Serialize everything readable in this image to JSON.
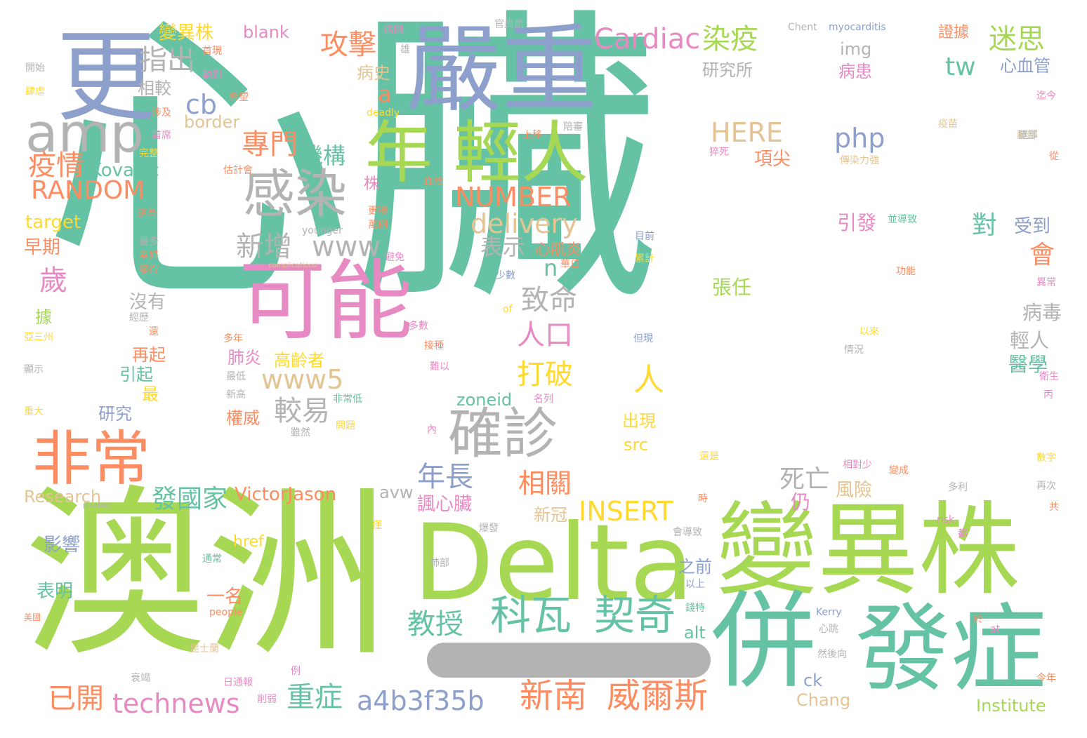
{
  "words": [
    {
      "text": "心臟",
      "color": "#66c2a5"
    },
    {
      "text": "澳洲",
      "color": "#a6d854"
    },
    {
      "text": "Delta",
      "color": "#a6d854"
    },
    {
      "text": "變異株",
      "color": "#a6d854"
    },
    {
      "text": "嚴重",
      "color": "#8da0cb"
    },
    {
      "text": "更",
      "color": "#8da0cb"
    },
    {
      "text": "可能",
      "color": "#e78ac3"
    },
    {
      "text": "年",
      "color": "#a6d854"
    },
    {
      "text": "輕人",
      "color": "#a6d854"
    },
    {
      "text": "併",
      "color": "#66c2a5"
    },
    {
      "text": "發症",
      "color": "#66c2a5"
    },
    {
      "text": "amp",
      "color": "#b3b3b3"
    },
    {
      "text": "感染",
      "color": "#b3b3b3"
    },
    {
      "text": "非常",
      "color": "#fc8d62"
    },
    {
      "text": "確診",
      "color": "#b3b3b3"
    },
    {
      "text": "科瓦",
      "color": "#66c2a5"
    },
    {
      "text": "契奇",
      "color": "#66c2a5"
    },
    {
      "text": "新南",
      "color": "#fc8d62"
    },
    {
      "text": "威爾斯",
      "color": "#fc8d62"
    },
    {
      "text": "Cardiac",
      "color": "#e78ac3"
    },
    {
      "text": "染疫",
      "color": "#a6d854"
    },
    {
      "text": "迷思",
      "color": "#a6d854"
    },
    {
      "text": "攻擊",
      "color": "#fc8d62"
    },
    {
      "text": "指出",
      "color": "#b3b3b3"
    },
    {
      "text": "RANDOM",
      "color": "#fc8d62"
    },
    {
      "text": "NUMBER",
      "color": "#fc8d62"
    },
    {
      "text": "delivery",
      "color": "#e5c494"
    },
    {
      "text": "php",
      "color": "#8da0cb"
    },
    {
      "text": "HERE",
      "color": "#e5c494"
    },
    {
      "text": "INSERT",
      "color": "#ffd92f"
    },
    {
      "text": "technews",
      "color": "#e78ac3"
    },
    {
      "text": "a4b3f35b",
      "color": "#8da0cb"
    },
    {
      "text": "重症",
      "color": "#66c2a5"
    },
    {
      "text": "已開",
      "color": "#fc8d62"
    },
    {
      "text": "教授",
      "color": "#66c2a5"
    },
    {
      "text": "VictorJason",
      "color": "#fc8d62"
    },
    {
      "text": "發國家",
      "color": "#66c2a5"
    },
    {
      "text": "年長",
      "color": "#8da0cb"
    },
    {
      "text": "相關",
      "color": "#fc8d62"
    },
    {
      "text": "疫情",
      "color": "#fc8d62"
    },
    {
      "text": "Kovacic",
      "color": "#66c2a5"
    },
    {
      "text": "專門",
      "color": "#fc8d62"
    },
    {
      "text": "機構",
      "color": "#66c2a5"
    },
    {
      "text": "新增",
      "color": "#b3b3b3"
    },
    {
      "text": "www",
      "color": "#b3b3b3"
    },
    {
      "text": "www5",
      "color": "#e5c494"
    },
    {
      "text": "較易",
      "color": "#b3b3b3"
    },
    {
      "text": "打破",
      "color": "#ffd92f"
    },
    {
      "text": "致命",
      "color": "#b3b3b3"
    },
    {
      "text": "人口",
      "color": "#e78ac3"
    },
    {
      "text": "表示",
      "color": "#b3b3b3"
    },
    {
      "text": "心肌炎",
      "color": "#fc8d62"
    },
    {
      "text": "死亡",
      "color": "#b3b3b3"
    },
    {
      "text": "tw",
      "color": "#66c2a5"
    },
    {
      "text": "cb",
      "color": "#8da0cb"
    },
    {
      "text": "a",
      "color": "#fc8d62"
    },
    {
      "text": "n",
      "color": "#66c2a5"
    },
    {
      "text": "對",
      "color": "#66c2a5"
    },
    {
      "text": "會",
      "color": "#fc8d62"
    },
    {
      "text": "人",
      "color": "#ffd92f"
    },
    {
      "text": "歲",
      "color": "#e78ac3"
    },
    {
      "text": "受到",
      "color": "#8da0cb"
    },
    {
      "text": "引發",
      "color": "#e78ac3"
    },
    {
      "text": "病毒",
      "color": "#b3b3b3"
    },
    {
      "text": "輕人",
      "color": "#b3b3b3"
    },
    {
      "text": "醫學",
      "color": "#66c2a5"
    },
    {
      "text": "張任",
      "color": "#a6d854"
    },
    {
      "text": "風險",
      "color": "#e5c494"
    },
    {
      "text": "諷心臟",
      "color": "#e78ac3"
    },
    {
      "text": "新冠",
      "color": "#e5c494"
    },
    {
      "text": "仍",
      "color": "#e78ac3"
    },
    {
      "text": "研究所",
      "color": "#b3b3b3"
    },
    {
      "text": "img",
      "color": "#b3b3b3"
    },
    {
      "text": "病患",
      "color": "#e78ac3"
    },
    {
      "text": "心血管",
      "color": "#8da0cb"
    },
    {
      "text": "項尖",
      "color": "#fc8d62"
    },
    {
      "text": "病史",
      "color": "#e5c494"
    },
    {
      "text": "變異株",
      "color": "#ffd92f"
    },
    {
      "text": "blank",
      "color": "#e78ac3"
    },
    {
      "text": "border",
      "color": "#e5c494"
    },
    {
      "text": "target",
      "color": "#ffd92f"
    },
    {
      "text": "早期",
      "color": "#fc8d62"
    },
    {
      "text": "相較",
      "color": "#b3b3b3"
    },
    {
      "text": "沒有",
      "color": "#b3b3b3"
    },
    {
      "text": "肺炎",
      "color": "#e78ac3"
    },
    {
      "text": "高齡者",
      "color": "#ffd92f"
    },
    {
      "text": "權威",
      "color": "#fc8d62"
    },
    {
      "text": "出現",
      "color": "#ffd92f"
    },
    {
      "text": "src",
      "color": "#ffd92f"
    },
    {
      "text": "zoneid",
      "color": "#66c2a5"
    },
    {
      "text": "avw",
      "color": "#b3b3b3"
    },
    {
      "text": "Research",
      "color": "#e5c494"
    },
    {
      "text": "之前",
      "color": "#8da0cb"
    },
    {
      "text": "一名",
      "color": "#fc8d62"
    },
    {
      "text": "alt",
      "color": "#66c2a5"
    },
    {
      "text": "ck",
      "color": "#8da0cb"
    },
    {
      "text": "Chang",
      "color": "#e5c494"
    },
    {
      "text": "Institute",
      "color": "#a6d854"
    },
    {
      "text": "href",
      "color": "#ffd92f"
    },
    {
      "text": "影響",
      "color": "#8da0cb"
    },
    {
      "text": "表明",
      "color": "#66c2a5"
    },
    {
      "text": "研究",
      "color": "#8da0cb"
    },
    {
      "text": "引起",
      "color": "#66c2a5"
    },
    {
      "text": "再起",
      "color": "#fc8d62"
    },
    {
      "text": "據",
      "color": "#a6d854"
    },
    {
      "text": "最",
      "color": "#ffd92f"
    },
    {
      "text": "株",
      "color": "#e78ac3"
    },
    {
      "text": "Chent",
      "color": "#b3b3b3"
    },
    {
      "text": "myocarditis",
      "color": "#8da0cb"
    },
    {
      "text": "證據",
      "color": "#fc8d62"
    },
    {
      "text": "官員凱",
      "color": "#b3b3b3"
    },
    {
      "text": "病例",
      "color": "#e78ac3"
    },
    {
      "text": "開始",
      "color": "#b3b3b3"
    },
    {
      "text": "肆虐",
      "color": "#ffd92f"
    },
    {
      "text": "首現",
      "color": "#fc8d62"
    },
    {
      "text": "動到",
      "color": "#e78ac3"
    },
    {
      "text": "希望",
      "color": "#fc8d62"
    },
    {
      "text": "涉及",
      "color": "#fc8d62"
    },
    {
      "text": "首席",
      "color": "#e78ac3"
    },
    {
      "text": "完整",
      "color": "#ffd92f"
    },
    {
      "text": "估計會",
      "color": "#fc8d62"
    },
    {
      "text": "上移",
      "color": "#fc8d62"
    },
    {
      "text": "猝死",
      "color": "#e78ac3"
    },
    {
      "text": "傳染力強",
      "color": "#e5c494"
    },
    {
      "text": "疫苗",
      "color": "#e5c494"
    },
    {
      "text": "肺部",
      "color": "#e5c494"
    },
    {
      "text": "迄今",
      "color": "#e78ac3"
    },
    {
      "text": "從",
      "color": "#fc8d62"
    },
    {
      "text": "並導致",
      "color": "#66c2a5"
    },
    {
      "text": "目前",
      "color": "#8da0cb"
    },
    {
      "text": "累計",
      "color": "#ffd92f"
    },
    {
      "text": "少數",
      "color": "#8da0cb"
    },
    {
      "text": "younger",
      "color": "#b3b3b3"
    },
    {
      "text": "complications",
      "color": "#e5c494"
    },
    {
      "text": "避免",
      "color": "#e78ac3"
    },
    {
      "text": "功能",
      "color": "#fc8d62"
    },
    {
      "text": "異常",
      "color": "#e78ac3"
    },
    {
      "text": "以來",
      "color": "#ffd92f"
    },
    {
      "text": "情況",
      "color": "#b3b3b3"
    },
    {
      "text": "多數",
      "color": "#e78ac3"
    },
    {
      "text": "接種",
      "color": "#fc8d62"
    },
    {
      "text": "難以",
      "color": "#e78ac3"
    },
    {
      "text": "非常低",
      "color": "#66c2a5"
    },
    {
      "text": "名列",
      "color": "#e78ac3"
    },
    {
      "text": "問題",
      "color": "#ffd92f"
    },
    {
      "text": "雖然",
      "color": "#b3b3b3"
    },
    {
      "text": "衛生",
      "color": "#e78ac3"
    },
    {
      "text": "丙",
      "color": "#e78ac3"
    },
    {
      "text": "數字",
      "color": "#ffd92f"
    },
    {
      "text": "再次",
      "color": "#b3b3b3"
    },
    {
      "text": "共",
      "color": "#fc8d62"
    },
    {
      "text": "相對少",
      "color": "#e78ac3"
    },
    {
      "text": "變成",
      "color": "#fc8d62"
    },
    {
      "text": "還是",
      "color": "#ffd92f"
    },
    {
      "text": "多利",
      "color": "#b3b3b3"
    },
    {
      "text": "risk",
      "color": "#e78ac3"
    },
    {
      "text": "都",
      "color": "#e78ac3"
    },
    {
      "text": "pixabay",
      "color": "#b3b3b3"
    },
    {
      "text": "爆發",
      "color": "#b3b3b3"
    },
    {
      "text": "會導致",
      "color": "#b3b3b3"
    },
    {
      "text": "通常",
      "color": "#66c2a5"
    },
    {
      "text": "肺部",
      "color": "#b3b3b3"
    },
    {
      "text": "people",
      "color": "#fc8d62"
    },
    {
      "text": "以上",
      "color": "#8da0cb"
    },
    {
      "text": "錢特",
      "color": "#66c2a5"
    },
    {
      "text": "Kerry",
      "color": "#8da0cb"
    },
    {
      "text": "心跳",
      "color": "#b3b3b3"
    },
    {
      "text": "然後向",
      "color": "#b3b3b3"
    },
    {
      "text": "at",
      "color": "#e78ac3"
    },
    {
      "text": "今年",
      "color": "#fc8d62"
    },
    {
      "text": "昆士蘭",
      "color": "#e5c494"
    },
    {
      "text": "日通報",
      "color": "#e78ac3"
    },
    {
      "text": "例",
      "color": "#e78ac3"
    },
    {
      "text": "削弱",
      "color": "#e78ac3"
    },
    {
      "text": "衰竭",
      "color": "#b3b3b3"
    },
    {
      "text": "美國",
      "color": "#fc8d62"
    },
    {
      "text": "重大",
      "color": "#ffd92f"
    },
    {
      "text": "亞三州",
      "color": "#ffd92f"
    },
    {
      "text": "顯示",
      "color": "#b3b3b3"
    },
    {
      "text": "經歷",
      "color": "#b3b3b3"
    },
    {
      "text": "還",
      "color": "#fc8d62"
    },
    {
      "text": "多年",
      "color": "#fc8d62"
    },
    {
      "text": "最低",
      "color": "#b3b3b3"
    },
    {
      "text": "新高",
      "color": "#b3b3b3"
    },
    {
      "text": "內",
      "color": "#e78ac3"
    },
    {
      "text": "但現",
      "color": "#8da0cb"
    },
    {
      "text": "of",
      "color": "#ffd92f"
    },
    {
      "text": "華日",
      "color": "#fc8d62"
    },
    {
      "text": "更積",
      "color": "#fc8d62"
    },
    {
      "text": "萬例",
      "color": "#fc8d62"
    },
    {
      "text": "血栓",
      "color": "#fc8d62"
    },
    {
      "text": "deadly",
      "color": "#ffd92f"
    },
    {
      "text": "陪審",
      "color": "#b3b3b3"
    },
    {
      "text": "腿部",
      "color": "#b3b3b3"
    },
    {
      "text": "這些",
      "color": "#fc8d62"
    },
    {
      "text": "最多",
      "color": "#b3b3b3"
    },
    {
      "text": "幸好",
      "color": "#fc8d62"
    },
    {
      "text": "變得",
      "color": "#fc8d62"
    },
    {
      "text": "僅",
      "color": "#ffd92f"
    },
    {
      "text": "時",
      "color": "#fc8d62"
    },
    {
      "text": "於",
      "color": "#fc8d62"
    },
    {
      "text": "雄",
      "color": "#b3b3b3"
    }
  ]
}
